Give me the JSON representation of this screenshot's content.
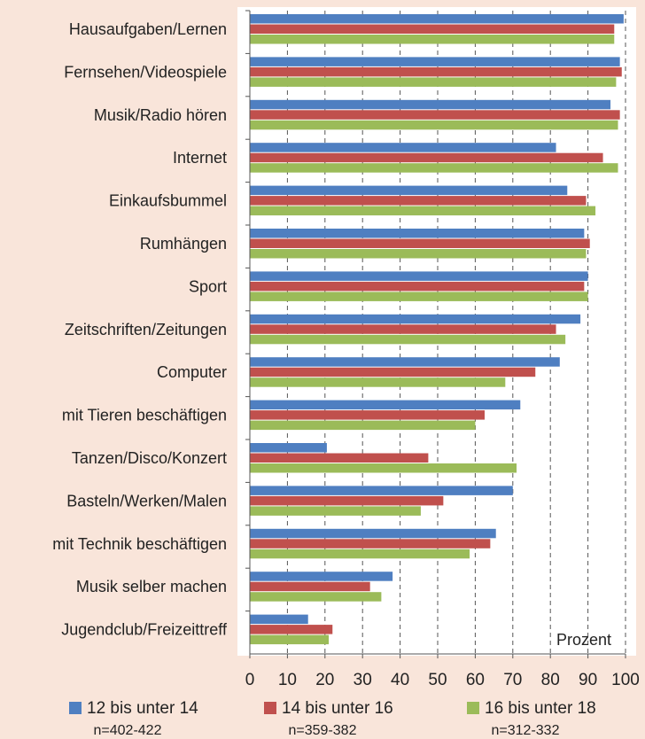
{
  "chart_data": {
    "type": "barh",
    "categories": [
      "Hausaufgaben/Lernen",
      "Fernsehen/Videospiele",
      "Musik/Radio hören",
      "Internet",
      "Einkaufsbummel",
      "Rumhängen",
      "Sport",
      "Zeitschriften/Zeitungen",
      "Computer",
      "mit Tieren beschäftigen",
      "Tanzen/Disco/Konzert",
      "Basteln/Werken/Malen",
      "mit Technik beschäftigen",
      "Musik selber machen",
      "Jugendclub/Freizeittreff"
    ],
    "series": [
      {
        "name": "12 bis unter 14",
        "sample": "n=402-422",
        "color": "#4f7fc1",
        "values": [
          99.5,
          98.5,
          96,
          81.5,
          84.5,
          89,
          90,
          88,
          82.5,
          72,
          20.5,
          70,
          65.5,
          38,
          15.5
        ]
      },
      {
        "name": "14 bis unter 16",
        "sample": "n=359-382",
        "color": "#c0504d",
        "values": [
          97,
          99,
          98.5,
          94,
          89.5,
          90.5,
          89,
          81.5,
          76,
          62.5,
          47.5,
          51.5,
          64,
          32,
          22
        ]
      },
      {
        "name": "16 bis unter 18",
        "sample": "n=312-332",
        "color": "#9bbb59",
        "values": [
          97,
          97.5,
          98,
          98,
          92,
          89.5,
          90,
          84,
          68,
          60,
          71,
          45.5,
          58.5,
          35,
          21
        ]
      }
    ],
    "xlim": [
      0,
      100
    ],
    "xticks": [
      0,
      10,
      20,
      30,
      40,
      50,
      60,
      70,
      80,
      90,
      100
    ],
    "axis_label": "Prozent",
    "grid": true
  }
}
